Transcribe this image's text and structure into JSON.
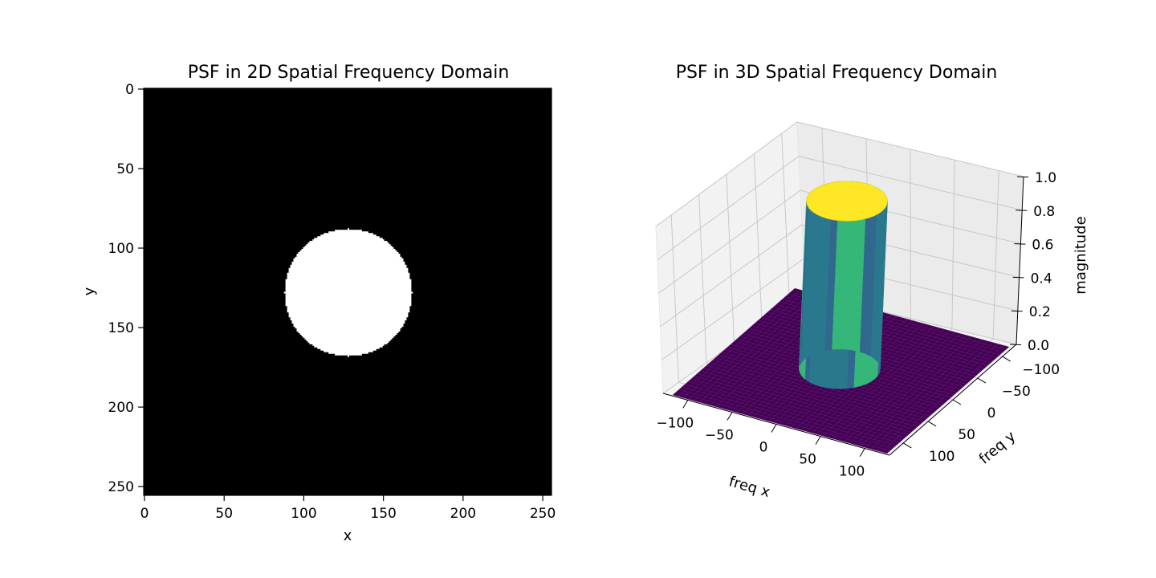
{
  "chart_data": [
    {
      "type": "heatmap",
      "title": "PSF in 2D Spatial Frequency Domain",
      "xlabel": "x",
      "ylabel": "y",
      "xlim": [
        0,
        256
      ],
      "ylim": [
        256,
        0
      ],
      "xticks": [
        0,
        50,
        100,
        150,
        200,
        250
      ],
      "yticks": [
        0,
        50,
        100,
        150,
        200,
        250
      ],
      "image_size": [
        256,
        256
      ],
      "colormap": "gray",
      "background_value": 0,
      "disk": {
        "center_x": 128,
        "center_y": 128,
        "radius": 40,
        "value": 1
      },
      "grid": false
    },
    {
      "type": "surface3d",
      "title": "PSF in 3D Spatial Frequency Domain",
      "xlabel": "freq x",
      "ylabel": "freq y",
      "zlabel": "magnitude",
      "xlim": [
        -128,
        128
      ],
      "ylim": [
        -128,
        128
      ],
      "zlim": [
        0,
        1
      ],
      "xticks": [
        -100,
        -50,
        0,
        50,
        100
      ],
      "yticks": [
        -100,
        -50,
        0,
        50,
        100
      ],
      "zticks": [
        "0.0",
        "0.2",
        "0.4",
        "0.6",
        "0.8",
        "1.0"
      ],
      "cylinder": {
        "center_x": 0,
        "center_y": 0,
        "radius": 40,
        "height": 1
      },
      "colormap": "viridis",
      "colors": {
        "low": "#440154",
        "mid": "#31688e",
        "green": "#35b779",
        "high": "#fde725"
      },
      "grid": true
    }
  ]
}
